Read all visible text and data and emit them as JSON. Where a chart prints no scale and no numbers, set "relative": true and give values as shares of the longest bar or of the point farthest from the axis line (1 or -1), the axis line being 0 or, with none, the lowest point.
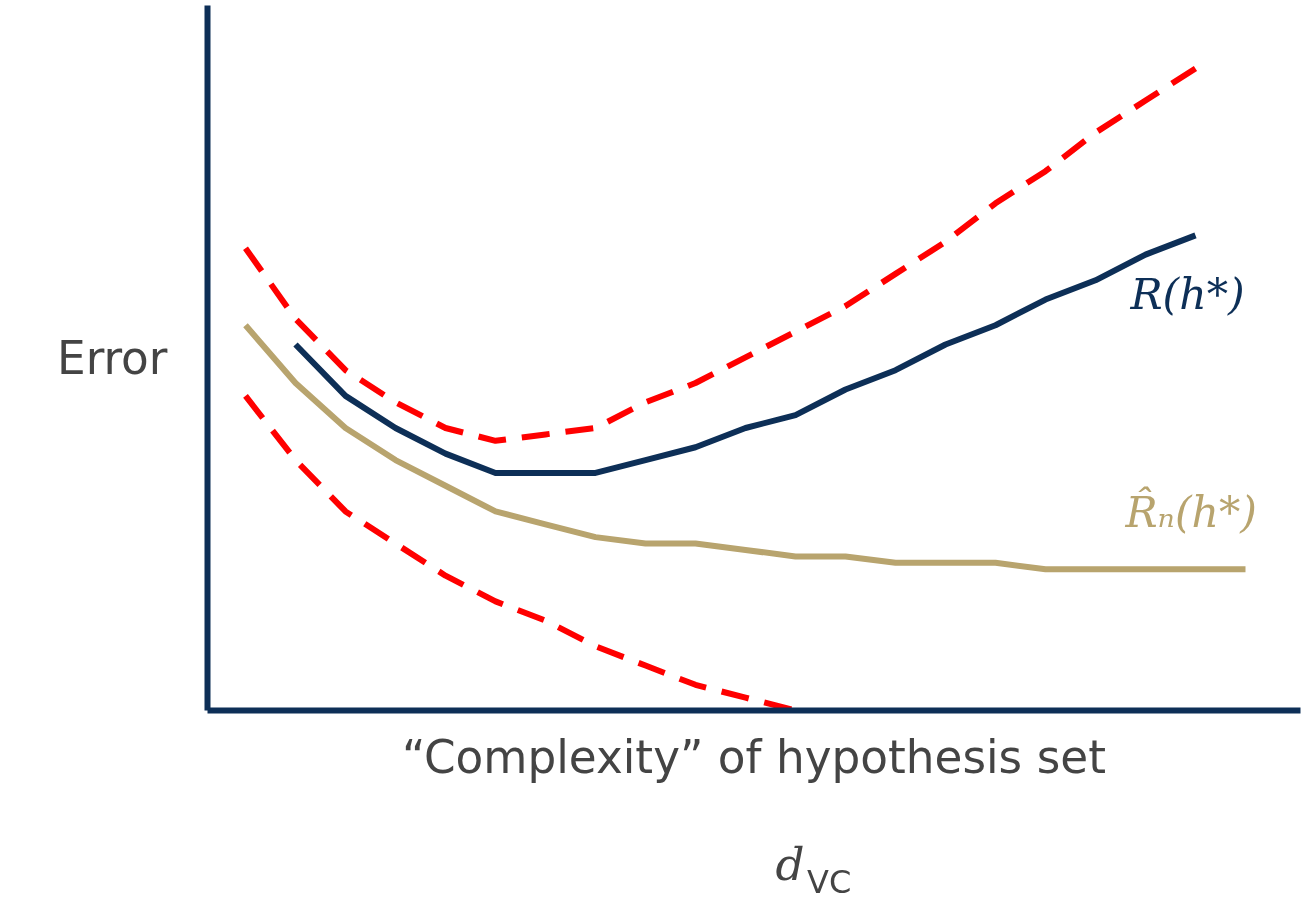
{
  "chart_data": {
    "type": "line",
    "relative": true,
    "ylabel": "Error",
    "xlabel": "“Complexity” of hypothesis set",
    "annotations": [
      "d$_{VC}$"
    ],
    "categories": [
      null,
      null,
      null,
      null,
      null,
      null,
      null,
      null,
      null,
      null,
      null,
      null,
      null,
      null,
      null,
      null,
      null,
      null,
      null,
      null,
      null
    ],
    "series": [
      {
        "color": "#ff0000",
        "line_style": "dashed",
        "values": [
          0.72,
          0.61,
          0.53,
          0.48,
          0.44,
          0.42,
          0.43,
          0.44,
          0.48,
          0.51,
          0.55,
          0.59,
          0.63,
          0.68,
          0.73,
          0.79,
          0.84,
          0.9,
          0.95,
          1.0,
          null
        ]
      },
      {
        "name": "R(h*)",
        "color": "#0d2f57",
        "line_style": "solid",
        "values": [
          null,
          0.57,
          0.49,
          0.44,
          0.4,
          0.37,
          0.37,
          0.37,
          0.39,
          0.41,
          0.44,
          0.46,
          0.5,
          0.53,
          0.57,
          0.6,
          0.64,
          0.67,
          0.71,
          0.74,
          null
        ]
      },
      {
        "name": "R̂ₙ(h*)",
        "color": "#b8a46e",
        "line_style": "solid",
        "values": [
          0.6,
          0.51,
          0.44,
          0.39,
          0.35,
          0.31,
          0.29,
          0.27,
          0.26,
          0.26,
          0.25,
          0.24,
          0.24,
          0.23,
          0.23,
          0.23,
          0.22,
          0.22,
          0.22,
          0.22,
          0.22
        ]
      },
      {
        "color": "#ff0000",
        "line_style": "dashed",
        "values": [
          0.49,
          0.39,
          0.31,
          0.26,
          0.21,
          0.17,
          0.14,
          0.1,
          0.07,
          0.04,
          0.02,
          0.0,
          null,
          null,
          null,
          null,
          null,
          null,
          null,
          null,
          null
        ]
      }
    ]
  }
}
